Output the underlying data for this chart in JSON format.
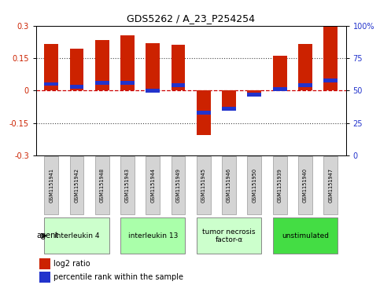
{
  "title": "GDS5262 / A_23_P254254",
  "samples": [
    "GSM1151941",
    "GSM1151942",
    "GSM1151948",
    "GSM1151943",
    "GSM1151944",
    "GSM1151949",
    "GSM1151945",
    "GSM1151946",
    "GSM1151950",
    "GSM1151939",
    "GSM1151940",
    "GSM1151947"
  ],
  "log2_ratio": [
    0.215,
    0.195,
    0.235,
    0.255,
    0.22,
    0.21,
    -0.205,
    -0.09,
    -0.025,
    0.16,
    0.215,
    0.295
  ],
  "percentile_rank": [
    55,
    53,
    56,
    56,
    50,
    54,
    33,
    36,
    47,
    51,
    54,
    58
  ],
  "groups": [
    {
      "label": "interleukin 4",
      "start": 0,
      "end": 3,
      "color": "#ccffcc"
    },
    {
      "label": "interleukin 13",
      "start": 3,
      "end": 6,
      "color": "#aaffaa"
    },
    {
      "label": "tumor necrosis\nfactor-α",
      "start": 6,
      "end": 9,
      "color": "#ccffcc"
    },
    {
      "label": "unstimulated",
      "start": 9,
      "end": 12,
      "color": "#44dd44"
    }
  ],
  "ylim": [
    -0.3,
    0.3
  ],
  "yticks_left": [
    -0.3,
    -0.15,
    0,
    0.15,
    0.3
  ],
  "yticks_right_pct": [
    0,
    25,
    50,
    75,
    100
  ],
  "bar_color": "#cc2200",
  "blue_color": "#2233cc",
  "zero_line_color": "#cc0000",
  "dotted_line_color": "#444444",
  "bar_width": 0.55,
  "agent_label": "agent",
  "legend_red": "log2 ratio",
  "legend_blue": "percentile rank within the sample",
  "sample_cell_color": "#d4d4d4",
  "sample_cell_edge": "#999999"
}
